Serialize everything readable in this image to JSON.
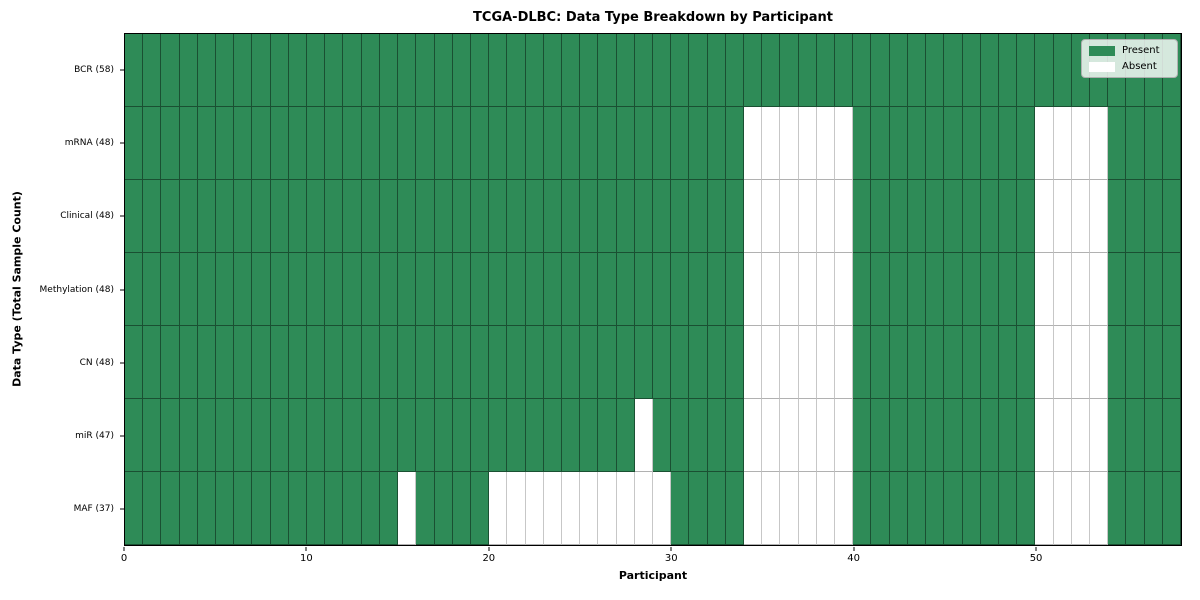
{
  "figure": {
    "title": "TCGA-DLBC: Data Type Breakdown by Participant",
    "xlabel": "Participant",
    "ylabel": "Data Type (Total Sample Count)"
  },
  "legend": {
    "position": "upper right",
    "items": [
      {
        "label": "Present",
        "color": "#2e8b57"
      },
      {
        "label": "Absent",
        "color": "#ffffff"
      }
    ]
  },
  "chart_data": {
    "type": "heatmap",
    "title": "TCGA-DLBC: Data Type Breakdown by Participant",
    "xlabel": "Participant",
    "ylabel": "Data Type (Total Sample Count)",
    "n_participants": 58,
    "x_range": [
      0,
      58
    ],
    "x_ticks": [
      0,
      10,
      20,
      30,
      40,
      50
    ],
    "grid": true,
    "colors": {
      "present": "#2e8b57",
      "absent": "#ffffff"
    },
    "cell_values": {
      "present": 1,
      "absent": 0
    },
    "rows": [
      {
        "label": "BCR (58)",
        "present_count": 58,
        "absent_participants": []
      },
      {
        "label": "mRNA (48)",
        "present_count": 48,
        "absent_participants": [
          34,
          35,
          36,
          37,
          38,
          39,
          50,
          51,
          52,
          53
        ]
      },
      {
        "label": "Clinical (48)",
        "present_count": 48,
        "absent_participants": [
          34,
          35,
          36,
          37,
          38,
          39,
          50,
          51,
          52,
          53
        ]
      },
      {
        "label": "Methylation (48)",
        "present_count": 48,
        "absent_participants": [
          34,
          35,
          36,
          37,
          38,
          39,
          50,
          51,
          52,
          53
        ]
      },
      {
        "label": "CN (48)",
        "present_count": 48,
        "absent_participants": [
          34,
          35,
          36,
          37,
          38,
          39,
          50,
          51,
          52,
          53
        ]
      },
      {
        "label": "miR (47)",
        "present_count": 47,
        "absent_participants": [
          28,
          34,
          35,
          36,
          37,
          38,
          39,
          50,
          51,
          52,
          53
        ]
      },
      {
        "label": "MAF (37)",
        "present_count": 37,
        "absent_participants": [
          15,
          20,
          21,
          22,
          23,
          24,
          25,
          26,
          27,
          28,
          29,
          34,
          35,
          36,
          37,
          38,
          39,
          50,
          51,
          52,
          53
        ]
      }
    ]
  }
}
